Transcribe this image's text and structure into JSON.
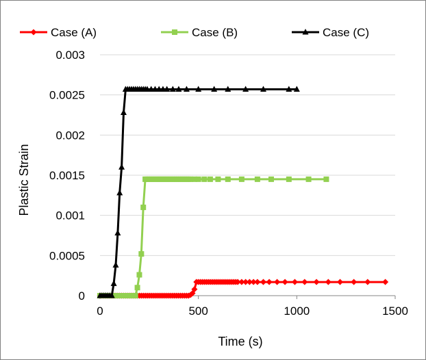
{
  "chart_data": {
    "type": "line",
    "title": "",
    "xlabel": "Time (s)",
    "ylabel": "Plastic Strain",
    "xlim": [
      0,
      1500
    ],
    "ylim": [
      0,
      0.003
    ],
    "x_ticks": [
      0,
      500,
      1000,
      1500
    ],
    "x_tick_labels": [
      "0",
      "500",
      "1000",
      "1500"
    ],
    "y_ticks": [
      0,
      0.0005,
      0.001,
      0.0015,
      0.002,
      0.0025,
      0.003
    ],
    "y_tick_labels": [
      "0",
      "0.0005",
      "0.001",
      "0.0015",
      "0.002",
      "0.0025",
      "0.003"
    ],
    "grid": "horizontal",
    "legend_position": "top",
    "series": [
      {
        "name": "Case (A)",
        "color": "#ff0000",
        "marker": "diamond",
        "x": [
          0,
          10,
          20,
          30,
          40,
          50,
          60,
          70,
          80,
          90,
          100,
          110,
          120,
          130,
          140,
          150,
          160,
          170,
          180,
          190,
          200,
          210,
          220,
          230,
          240,
          250,
          260,
          270,
          280,
          290,
          300,
          310,
          320,
          330,
          340,
          350,
          360,
          370,
          380,
          390,
          400,
          410,
          420,
          430,
          440,
          450,
          460,
          470,
          480,
          490,
          500,
          510,
          520,
          530,
          540,
          550,
          560,
          570,
          580,
          590,
          600,
          610,
          620,
          630,
          640,
          650,
          660,
          670,
          680,
          690,
          700,
          720,
          740,
          760,
          780,
          800,
          830,
          860,
          900,
          940,
          990,
          1040,
          1100,
          1160,
          1220,
          1290,
          1360,
          1450
        ],
        "y": [
          0,
          0,
          0,
          0,
          0,
          0,
          0,
          0,
          0,
          0,
          0,
          0,
          0,
          0,
          0,
          0,
          0,
          0,
          0,
          0,
          0,
          0,
          0,
          0,
          0,
          0,
          0,
          0,
          0,
          0,
          0,
          0,
          0,
          0,
          0,
          0,
          0,
          0,
          0,
          0,
          0,
          0,
          0,
          0,
          0,
          0,
          1e-05,
          3e-05,
          8e-05,
          0.00017,
          0.00017,
          0.00017,
          0.00017,
          0.00017,
          0.00017,
          0.00017,
          0.00017,
          0.00017,
          0.00017,
          0.00017,
          0.00017,
          0.00017,
          0.00017,
          0.00017,
          0.00017,
          0.00017,
          0.00017,
          0.00017,
          0.00017,
          0.00017,
          0.00017,
          0.00017,
          0.00017,
          0.00017,
          0.00017,
          0.00017,
          0.00017,
          0.00017,
          0.00017,
          0.00017,
          0.00017,
          0.00017,
          0.00017,
          0.00017,
          0.00017,
          0.00017,
          0.00017,
          0.00017
        ]
      },
      {
        "name": "Case (B)",
        "color": "#92d050",
        "marker": "square",
        "x": [
          0,
          10,
          20,
          30,
          40,
          50,
          60,
          70,
          80,
          90,
          100,
          110,
          120,
          130,
          140,
          150,
          160,
          170,
          180,
          190,
          200,
          210,
          220,
          230,
          240,
          250,
          260,
          270,
          280,
          290,
          300,
          310,
          320,
          330,
          340,
          350,
          360,
          370,
          380,
          390,
          400,
          410,
          420,
          430,
          440,
          450,
          460,
          480,
          500,
          530,
          560,
          600,
          650,
          720,
          800,
          870,
          960,
          1060,
          1150
        ],
        "y": [
          0,
          0,
          0,
          0,
          0,
          0,
          0,
          0,
          0,
          0,
          0,
          0,
          0,
          0,
          0,
          0,
          0,
          0,
          0,
          0.0001,
          0.00026,
          0.00052,
          0.0011,
          0.00145,
          0.00145,
          0.00145,
          0.00145,
          0.00145,
          0.00145,
          0.00145,
          0.00145,
          0.00145,
          0.00145,
          0.00145,
          0.00145,
          0.00145,
          0.00145,
          0.00145,
          0.00145,
          0.00145,
          0.00145,
          0.00145,
          0.00145,
          0.00145,
          0.00145,
          0.00145,
          0.00145,
          0.00145,
          0.00145,
          0.00145,
          0.00145,
          0.00145,
          0.00145,
          0.00145,
          0.00145,
          0.00145,
          0.00145,
          0.00145,
          0.00145
        ]
      },
      {
        "name": "Case (C)",
        "color": "#000000",
        "marker": "triangle",
        "x": [
          0,
          10,
          20,
          30,
          40,
          50,
          60,
          70,
          80,
          90,
          100,
          110,
          120,
          130,
          140,
          150,
          160,
          170,
          180,
          190,
          200,
          210,
          220,
          230,
          240,
          260,
          280,
          300,
          320,
          340,
          370,
          400,
          440,
          500,
          580,
          650,
          740,
          830,
          960,
          1000
        ],
        "y": [
          0,
          0,
          0,
          0,
          0,
          0,
          0,
          0.00015,
          0.00038,
          0.00078,
          0.00128,
          0.0016,
          0.00228,
          0.00257,
          0.00257,
          0.00257,
          0.00257,
          0.00257,
          0.00257,
          0.00257,
          0.00257,
          0.00257,
          0.00257,
          0.00257,
          0.00257,
          0.00257,
          0.00257,
          0.00257,
          0.00257,
          0.00257,
          0.00257,
          0.00257,
          0.00257,
          0.00257,
          0.00257,
          0.00257,
          0.00257,
          0.00257,
          0.00257,
          0.00257
        ]
      }
    ]
  }
}
